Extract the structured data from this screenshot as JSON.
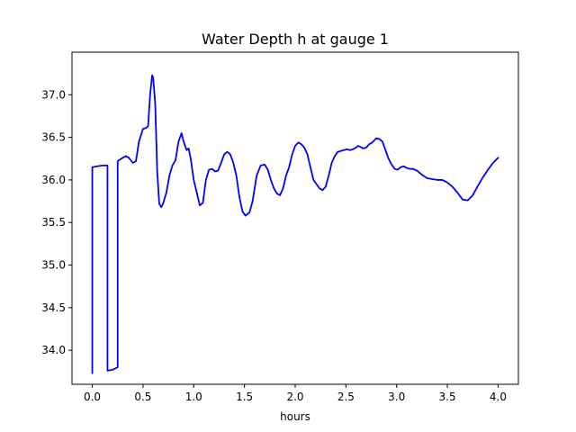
{
  "chart_data": {
    "type": "line",
    "title": "Water Depth h at gauge 1",
    "xlabel": "hours",
    "ylabel": "",
    "xlim": [
      -0.2,
      4.2
    ],
    "ylim": [
      33.6,
      37.5
    ],
    "xticks": [
      0.0,
      0.5,
      1.0,
      1.5,
      2.0,
      2.5,
      3.0,
      3.5,
      4.0
    ],
    "xtick_labels": [
      "0.0",
      "0.5",
      "1.0",
      "1.5",
      "2.0",
      "2.5",
      "3.0",
      "3.5",
      "4.0"
    ],
    "yticks": [
      34.0,
      34.5,
      35.0,
      35.5,
      36.0,
      36.5,
      37.0
    ],
    "ytick_labels": [
      "34.0",
      "34.5",
      "35.0",
      "35.5",
      "36.0",
      "36.5",
      "37.0"
    ],
    "grid": false,
    "legend": "none",
    "series": [
      {
        "color": "#0000ff",
        "x": [
          0.0,
          0.0,
          0.05,
          0.1,
          0.15,
          0.15,
          0.2,
          0.25,
          0.25,
          0.3,
          0.33,
          0.36,
          0.4,
          0.43,
          0.46,
          0.5,
          0.53,
          0.55,
          0.57,
          0.59,
          0.6,
          0.62,
          0.64,
          0.66,
          0.68,
          0.7,
          0.73,
          0.76,
          0.79,
          0.82,
          0.85,
          0.88,
          0.9,
          0.93,
          0.95,
          0.97,
          1.0,
          1.03,
          1.06,
          1.09,
          1.12,
          1.15,
          1.18,
          1.21,
          1.24,
          1.27,
          1.3,
          1.33,
          1.36,
          1.39,
          1.42,
          1.45,
          1.48,
          1.51,
          1.55,
          1.58,
          1.62,
          1.66,
          1.7,
          1.73,
          1.76,
          1.79,
          1.82,
          1.85,
          1.88,
          1.91,
          1.94,
          1.97,
          2.0,
          2.03,
          2.06,
          2.09,
          2.12,
          2.15,
          2.18,
          2.21,
          2.24,
          2.27,
          2.3,
          2.33,
          2.36,
          2.39,
          2.42,
          2.45,
          2.48,
          2.51,
          2.54,
          2.57,
          2.6,
          2.62,
          2.64,
          2.67,
          2.7,
          2.73,
          2.76,
          2.8,
          2.83,
          2.86,
          2.89,
          2.92,
          2.95,
          2.98,
          3.01,
          3.04,
          3.07,
          3.1,
          3.13,
          3.16,
          3.2,
          3.25,
          3.3,
          3.35,
          3.4,
          3.45,
          3.5,
          3.55,
          3.6,
          3.65,
          3.7,
          3.75,
          3.8,
          3.85,
          3.9,
          3.95,
          4.0
        ],
        "y": [
          33.73,
          36.15,
          36.16,
          36.17,
          36.17,
          33.76,
          33.77,
          33.8,
          36.22,
          36.26,
          36.28,
          36.26,
          36.2,
          36.22,
          36.45,
          36.6,
          36.61,
          36.63,
          37.0,
          37.23,
          37.2,
          36.9,
          36.1,
          35.72,
          35.68,
          35.73,
          35.85,
          36.05,
          36.17,
          36.23,
          36.45,
          36.55,
          36.45,
          36.35,
          36.37,
          36.25,
          36.0,
          35.85,
          35.7,
          35.73,
          36.0,
          36.12,
          36.13,
          36.1,
          36.11,
          36.2,
          36.3,
          36.33,
          36.3,
          36.2,
          36.05,
          35.8,
          35.63,
          35.58,
          35.62,
          35.75,
          36.05,
          36.17,
          36.18,
          36.12,
          36.0,
          35.9,
          35.84,
          35.82,
          35.9,
          36.05,
          36.15,
          36.3,
          36.4,
          36.44,
          36.42,
          36.38,
          36.3,
          36.15,
          36.0,
          35.95,
          35.9,
          35.88,
          35.92,
          36.05,
          36.2,
          36.28,
          36.33,
          36.34,
          36.35,
          36.36,
          36.35,
          36.36,
          36.38,
          36.4,
          36.39,
          36.37,
          36.38,
          36.42,
          36.44,
          36.49,
          36.48,
          36.45,
          36.35,
          36.25,
          36.18,
          36.13,
          36.12,
          36.15,
          36.16,
          36.14,
          36.13,
          36.13,
          36.11,
          36.06,
          36.02,
          36.01,
          36.0,
          36.0,
          35.97,
          35.92,
          35.85,
          35.77,
          35.76,
          35.82,
          35.93,
          36.03,
          36.12,
          36.2,
          36.26
        ]
      }
    ]
  }
}
